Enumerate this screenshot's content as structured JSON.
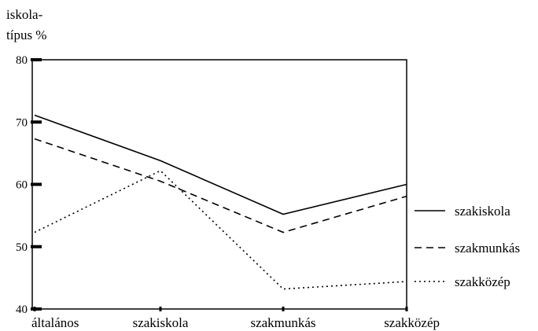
{
  "chart_data": {
    "type": "line",
    "title": "",
    "ylabel_lines": [
      "iskola-",
      "típus %"
    ],
    "xlabel": "",
    "categories": [
      "általános",
      "szakiskola",
      "szakmunkás",
      "szakközép"
    ],
    "ylim": [
      40,
      80
    ],
    "yticks": [
      40,
      50,
      60,
      70,
      80
    ],
    "grid": false,
    "legend_position": "right",
    "series": [
      {
        "name": "szakiskola",
        "style": "solid",
        "color": "#000000",
        "values": [
          71.1,
          63.8,
          55.2,
          60.0
        ]
      },
      {
        "name": "szakmunkás",
        "style": "dashed",
        "color": "#000000",
        "values": [
          67.3,
          60.5,
          52.3,
          58.1
        ]
      },
      {
        "name": "szakközép",
        "style": "dotted",
        "color": "#000000",
        "values": [
          52.3,
          62.2,
          43.2,
          44.4
        ]
      }
    ]
  }
}
